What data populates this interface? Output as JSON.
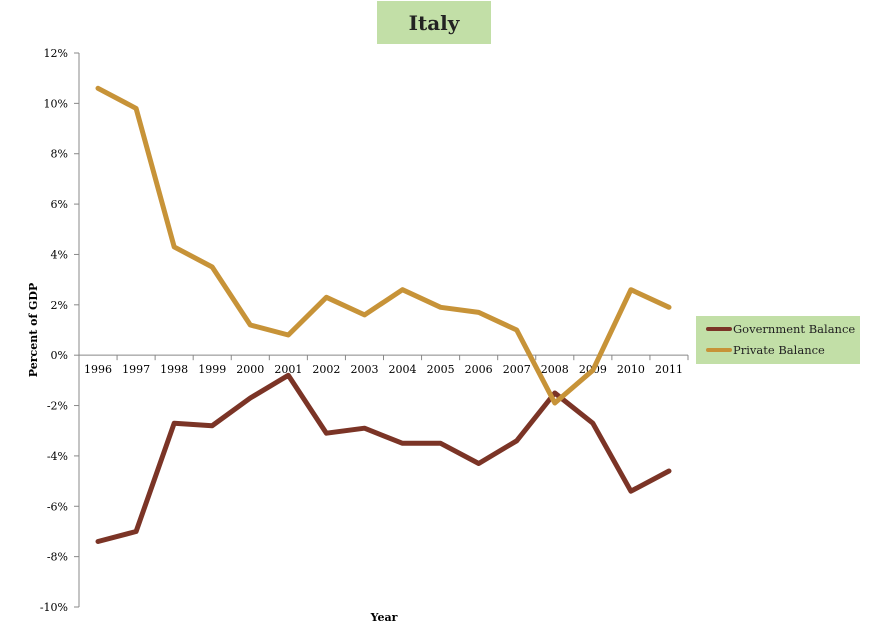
{
  "chart_data": {
    "type": "line",
    "title": "Italy",
    "xlabel": "Year",
    "ylabel": "Percent of GDP",
    "categories": [
      "1996",
      "1997",
      "1998",
      "1999",
      "2000",
      "2001",
      "2002",
      "2003",
      "2004",
      "2005",
      "2006",
      "2007",
      "2008",
      "2009",
      "2010",
      "2011"
    ],
    "ylim": [
      -10,
      12
    ],
    "yticks": [
      12,
      10,
      8,
      6,
      4,
      2,
      0,
      -2,
      -4,
      -6,
      -8,
      -10
    ],
    "ytick_labels": [
      "12%",
      "10%",
      "8%",
      "6%",
      "4%",
      "2%",
      "0%",
      "-2%",
      "-4%",
      "-6%",
      "-8%",
      "-10%"
    ],
    "grid": false,
    "legend_position": "right",
    "series": [
      {
        "name": "Government Balance",
        "color": "#7b3426",
        "values": [
          -7.4,
          -7.0,
          -2.7,
          -2.8,
          -1.7,
          -0.8,
          -3.1,
          -2.9,
          -3.5,
          -3.5,
          -4.3,
          -3.4,
          -1.5,
          -2.7,
          -5.4,
          -4.6
        ]
      },
      {
        "name": "Private Balance",
        "color": "#c79338",
        "values": [
          10.6,
          9.8,
          4.3,
          3.5,
          1.2,
          0.8,
          2.3,
          1.6,
          2.6,
          1.9,
          1.7,
          1.0,
          -1.9,
          -0.6,
          2.6,
          1.9
        ]
      }
    ]
  }
}
